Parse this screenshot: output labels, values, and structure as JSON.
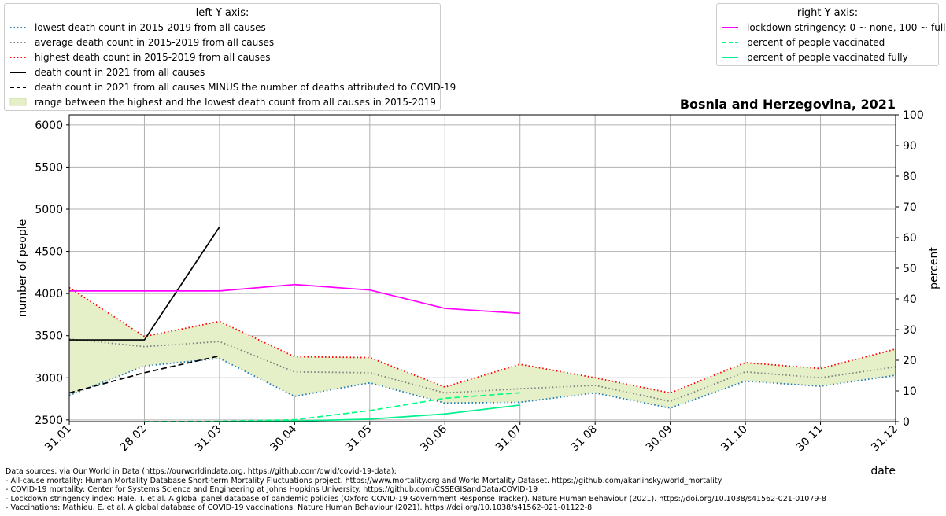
{
  "chart_data": {
    "type": "line",
    "title": "Bosnia and Herzegovina, 2021",
    "xlabel": "date",
    "ylabel_left": "number of people",
    "ylabel_right": "percent",
    "ylim_left": [
      2480,
      6120
    ],
    "ylim_right": [
      0,
      100
    ],
    "grid": true,
    "categories": [
      "31.01",
      "28.02",
      "31.03",
      "30.04",
      "31.05",
      "30.06",
      "31.07",
      "31.08",
      "30.09",
      "31.10",
      "30.11",
      "31.12"
    ],
    "left_yticks": [
      2500,
      3000,
      3500,
      4000,
      4500,
      5000,
      5500,
      6000
    ],
    "right_yticks": [
      0,
      10,
      20,
      30,
      40,
      50,
      60,
      70,
      80,
      90,
      100
    ],
    "legend_left_title": "left Y axis:",
    "legend_right_title": "right Y axis:",
    "legend_left_placement": "top-left",
    "legend_right_placement": "top-right",
    "series": [
      {
        "name": "lowest death count in 2015-2019 from all causes",
        "axis": "left",
        "style": "dotted",
        "color": "#1f77b4",
        "values": [
          2790,
          3140,
          3230,
          2780,
          2940,
          2700,
          2710,
          2820,
          2640,
          2960,
          2900,
          3030
        ]
      },
      {
        "name": "average death count in 2015-2019 from all causes",
        "axis": "left",
        "style": "dotted",
        "color": "#7f7f7f",
        "values": [
          3460,
          3370,
          3430,
          3070,
          3060,
          2820,
          2870,
          2910,
          2720,
          3070,
          3000,
          3130
        ]
      },
      {
        "name": "highest death count in 2015-2019 from all causes",
        "axis": "left",
        "style": "dotted",
        "color": "#ff0000",
        "values": [
          4070,
          3490,
          3670,
          3250,
          3240,
          2890,
          3160,
          3000,
          2820,
          3180,
          3110,
          3340
        ]
      },
      {
        "name": "death count in 2021 from all causes",
        "axis": "left",
        "style": "solid",
        "color": "#000000",
        "values": [
          3450,
          3450,
          4790,
          null,
          null,
          null,
          null,
          null,
          null,
          null,
          null,
          null
        ]
      },
      {
        "name": "death count in 2021 from all causes MINUS the number of deaths attributed to COVID-19",
        "axis": "left",
        "style": "dashed",
        "color": "#000000",
        "values": [
          2820,
          3060,
          3260,
          null,
          null,
          null,
          null,
          null,
          null,
          null,
          null,
          null
        ]
      },
      {
        "name": "range between the highest and the lowest death count from all causes in 2015-2019",
        "axis": "left",
        "style": "band",
        "color": "#e5f0c8"
      },
      {
        "name": "lockdown stringency: 0 ~ none, 100 ~ full",
        "axis": "right",
        "style": "solid",
        "color": "#ff00ff",
        "values": [
          42.6,
          42.6,
          42.6,
          44.7,
          42.9,
          36.9,
          35.3,
          null,
          null,
          null,
          null,
          null
        ]
      },
      {
        "name": "percent of people vaccinated",
        "axis": "right",
        "style": "dashed",
        "color": "#00ff80",
        "values": [
          null,
          0.0,
          0.1,
          0.6,
          3.6,
          7.6,
          9.4,
          null,
          null,
          null,
          null,
          null
        ]
      },
      {
        "name": "percent of people vaccinated fully",
        "axis": "right",
        "style": "solid",
        "color": "#00f08c",
        "values": [
          null,
          null,
          0.0,
          0.2,
          0.8,
          2.5,
          5.4,
          null,
          null,
          null,
          null,
          null
        ]
      }
    ]
  },
  "sources": [
    "Data sources, via Our World in Data (https://ourworldindata.org, https://github.com/owid/covid-19-data):",
    "- All-cause mortality: Human Mortality Database Short-term Mortality Fluctuations project. https://www.mortality.org and World Mortality Dataset. https://github.com/akarlinsky/world_mortality",
    "- COVID-19 mortality: Center for Systems Science and Engineering at Johns Hopkins University. https://github.com/CSSEGISandData/COVID-19",
    "- Lockdown stringency index: Hale, T. et al. A global panel database of pandemic policies (Oxford COVID-19 Government Response Tracker). Nature Human Behaviour (2021). https://doi.org/10.1038/s41562-021-01079-8",
    "- Vaccinations: Mathieu, E. et al. A global database of COVID-19 vaccinations. Nature Human Behaviour (2021). https://doi.org/10.1038/s41562-021-01122-8"
  ]
}
